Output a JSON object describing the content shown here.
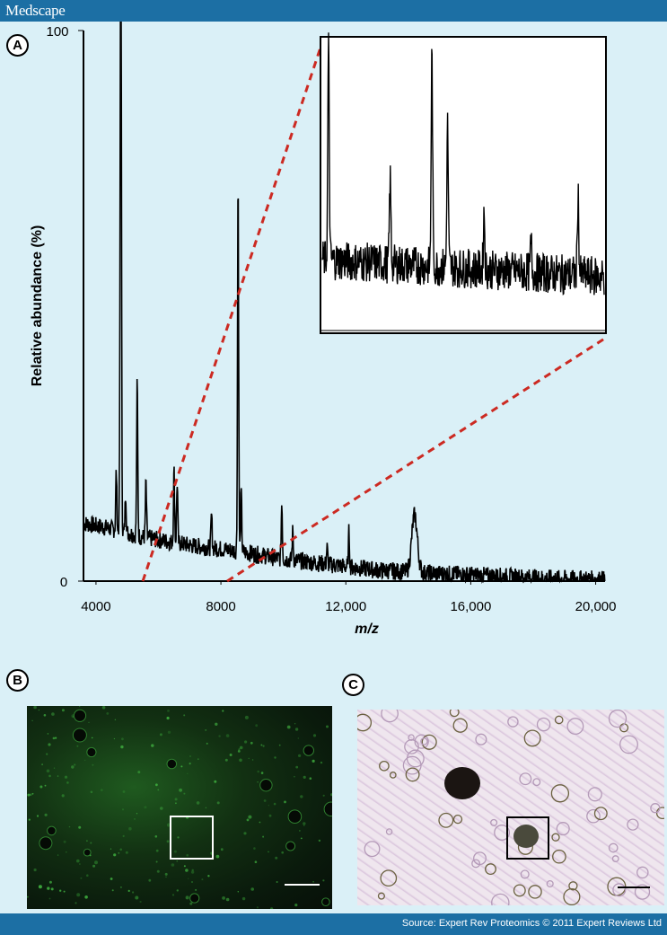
{
  "header": {
    "brand": "Medscape"
  },
  "footer": {
    "source": "Source: Expert Rev Proteomics © 2011 Expert Reviews Ltd"
  },
  "panels": {
    "a": "A",
    "b": "B",
    "c": "C"
  },
  "chart_data": {
    "type": "line",
    "title": "",
    "xlabel": "m/z",
    "ylabel": "Relative abundance (%)",
    "xlim": [
      3600,
      20300
    ],
    "ylim": [
      0,
      100
    ],
    "x_ticks": [
      4000,
      8000,
      12000,
      16000,
      20000
    ],
    "x_tick_labels": [
      "4000",
      "8000",
      "12,000",
      "16,000",
      "20,000"
    ],
    "y_tick_labels": [
      "0",
      "100"
    ],
    "baseline": [
      [
        3600,
        10.5
      ],
      [
        4500,
        9.5
      ],
      [
        5500,
        8
      ],
      [
        7000,
        6.5
      ],
      [
        8500,
        5.5
      ],
      [
        10000,
        4
      ],
      [
        11500,
        3
      ],
      [
        13000,
        2
      ],
      [
        14500,
        1.5
      ],
      [
        16500,
        1
      ],
      [
        18500,
        0.5
      ],
      [
        20300,
        0.3
      ]
    ],
    "peaks": [
      {
        "x": 4800,
        "y": 97
      },
      {
        "x": 4780,
        "y": 49
      },
      {
        "x": 4650,
        "y": 20
      },
      {
        "x": 4950,
        "y": 16
      },
      {
        "x": 5320,
        "y": 36
      },
      {
        "x": 5600,
        "y": 18
      },
      {
        "x": 6500,
        "y": 20
      },
      {
        "x": 6600,
        "y": 18
      },
      {
        "x": 8550,
        "y": 73
      },
      {
        "x": 8650,
        "y": 16
      },
      {
        "x": 9950,
        "y": 14
      },
      {
        "x": 10300,
        "y": 9
      },
      {
        "x": 11400,
        "y": 6
      },
      {
        "x": 12100,
        "y": 9
      },
      {
        "x": 14200,
        "y": 12
      },
      {
        "x": 7700,
        "y": 12
      }
    ],
    "inset": {
      "description_range_mz": [
        5500,
        8200
      ],
      "peaks": [
        {
          "x": 5560,
          "y": 95
        },
        {
          "x": 6150,
          "y": 50
        },
        {
          "x": 6550,
          "y": 95
        },
        {
          "x": 6700,
          "y": 70
        },
        {
          "x": 7050,
          "y": 40
        },
        {
          "x": 7500,
          "y": 30
        },
        {
          "x": 7950,
          "y": 48
        }
      ]
    }
  }
}
